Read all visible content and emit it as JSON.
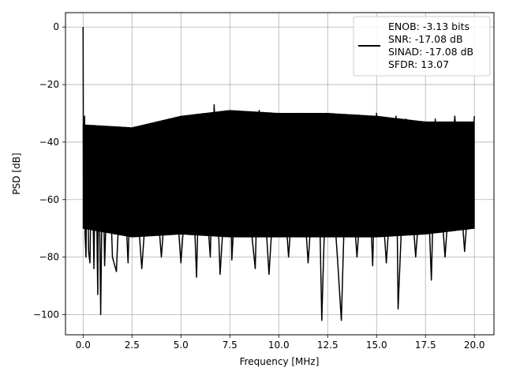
{
  "chart_data": {
    "type": "line",
    "title": "",
    "xlabel": "Frequency [MHz]",
    "ylabel": "PSD [dB]",
    "xlim": [
      -0.9,
      21.0
    ],
    "ylim": [
      -107,
      5
    ],
    "xticks": [
      0.0,
      2.5,
      5.0,
      7.5,
      10.0,
      12.5,
      15.0,
      17.5,
      20.0
    ],
    "xtick_labels": [
      "0.0",
      "2.5",
      "5.0",
      "7.5",
      "10.0",
      "12.5",
      "15.0",
      "17.5",
      "20.0"
    ],
    "yticks": [
      0,
      -20,
      -40,
      -60,
      -80,
      -100
    ],
    "ytick_labels": [
      "0",
      "−20",
      "−40",
      "−60",
      "−80",
      "−100"
    ],
    "grid": true,
    "legend_position": "top-right",
    "legend_lines": [
      "ENOB: -3.13 bits",
      "SNR: -17.08 dB",
      "SINAD: -17.08 dB",
      "SFDR: 13.07"
    ],
    "line_color": "#000000",
    "noise_band": {
      "x_start": 0.0,
      "x_end": 20.0,
      "upper_envelope": [
        [
          0.0,
          -34
        ],
        [
          2.5,
          -35
        ],
        [
          5.0,
          -31
        ],
        [
          7.5,
          -29
        ],
        [
          10.0,
          -30
        ],
        [
          12.5,
          -30
        ],
        [
          15.0,
          -31
        ],
        [
          17.5,
          -33
        ],
        [
          20.0,
          -33
        ]
      ],
      "lower_envelope": [
        [
          0.0,
          -70
        ],
        [
          2.5,
          -73
        ],
        [
          5.0,
          -72
        ],
        [
          7.5,
          -73
        ],
        [
          10.0,
          -73
        ],
        [
          12.5,
          -73
        ],
        [
          15.0,
          -73
        ],
        [
          17.5,
          -72
        ],
        [
          20.0,
          -70
        ]
      ]
    },
    "series": [
      {
        "values": [
          [
            0.0,
            0.0
          ],
          [
            0.02,
            -63
          ],
          [
            0.08,
            -31
          ],
          [
            0.1,
            -72
          ],
          [
            0.15,
            -80
          ],
          [
            0.2,
            -36
          ],
          [
            0.28,
            -78
          ],
          [
            0.35,
            -82
          ],
          [
            0.45,
            -36
          ],
          [
            0.55,
            -84
          ],
          [
            0.65,
            -37
          ],
          [
            0.72,
            -79
          ],
          [
            0.75,
            -93
          ],
          [
            0.8,
            -39
          ],
          [
            0.9,
            -100
          ],
          [
            1.0,
            -40
          ],
          [
            1.1,
            -83
          ],
          [
            1.3,
            -37
          ],
          [
            1.5,
            -80
          ],
          [
            1.7,
            -85
          ],
          [
            2.0,
            -38
          ],
          [
            2.3,
            -82
          ],
          [
            2.5,
            -36
          ],
          [
            3.0,
            -84
          ],
          [
            3.5,
            -35
          ],
          [
            4.0,
            -80
          ],
          [
            4.5,
            -34
          ],
          [
            5.0,
            -82
          ],
          [
            5.5,
            -33
          ],
          [
            5.8,
            -87
          ],
          [
            6.0,
            -31
          ],
          [
            6.5,
            -80
          ],
          [
            6.7,
            -27
          ],
          [
            7.0,
            -86
          ],
          [
            7.5,
            -30
          ],
          [
            7.6,
            -81
          ],
          [
            8.0,
            -31
          ],
          [
            8.8,
            -84
          ],
          [
            9.0,
            -29
          ],
          [
            9.5,
            -86
          ],
          [
            10.0,
            -30
          ],
          [
            10.5,
            -80
          ],
          [
            11.0,
            -30
          ],
          [
            11.5,
            -82
          ],
          [
            12.0,
            -31
          ],
          [
            12.2,
            -102
          ],
          [
            12.5,
            -31
          ],
          [
            13.0,
            -80
          ],
          [
            13.2,
            -102
          ],
          [
            13.5,
            -31
          ],
          [
            14.0,
            -80
          ],
          [
            14.5,
            -31
          ],
          [
            14.8,
            -83
          ],
          [
            15.0,
            -30
          ],
          [
            15.5,
            -82
          ],
          [
            16.0,
            -31
          ],
          [
            16.1,
            -98
          ],
          [
            16.5,
            -32
          ],
          [
            17.0,
            -80
          ],
          [
            17.5,
            -33
          ],
          [
            17.8,
            -88
          ],
          [
            18.0,
            -32
          ],
          [
            18.5,
            -80
          ],
          [
            19.0,
            -31
          ],
          [
            19.5,
            -78
          ],
          [
            20.0,
            -31
          ]
        ]
      }
    ]
  }
}
